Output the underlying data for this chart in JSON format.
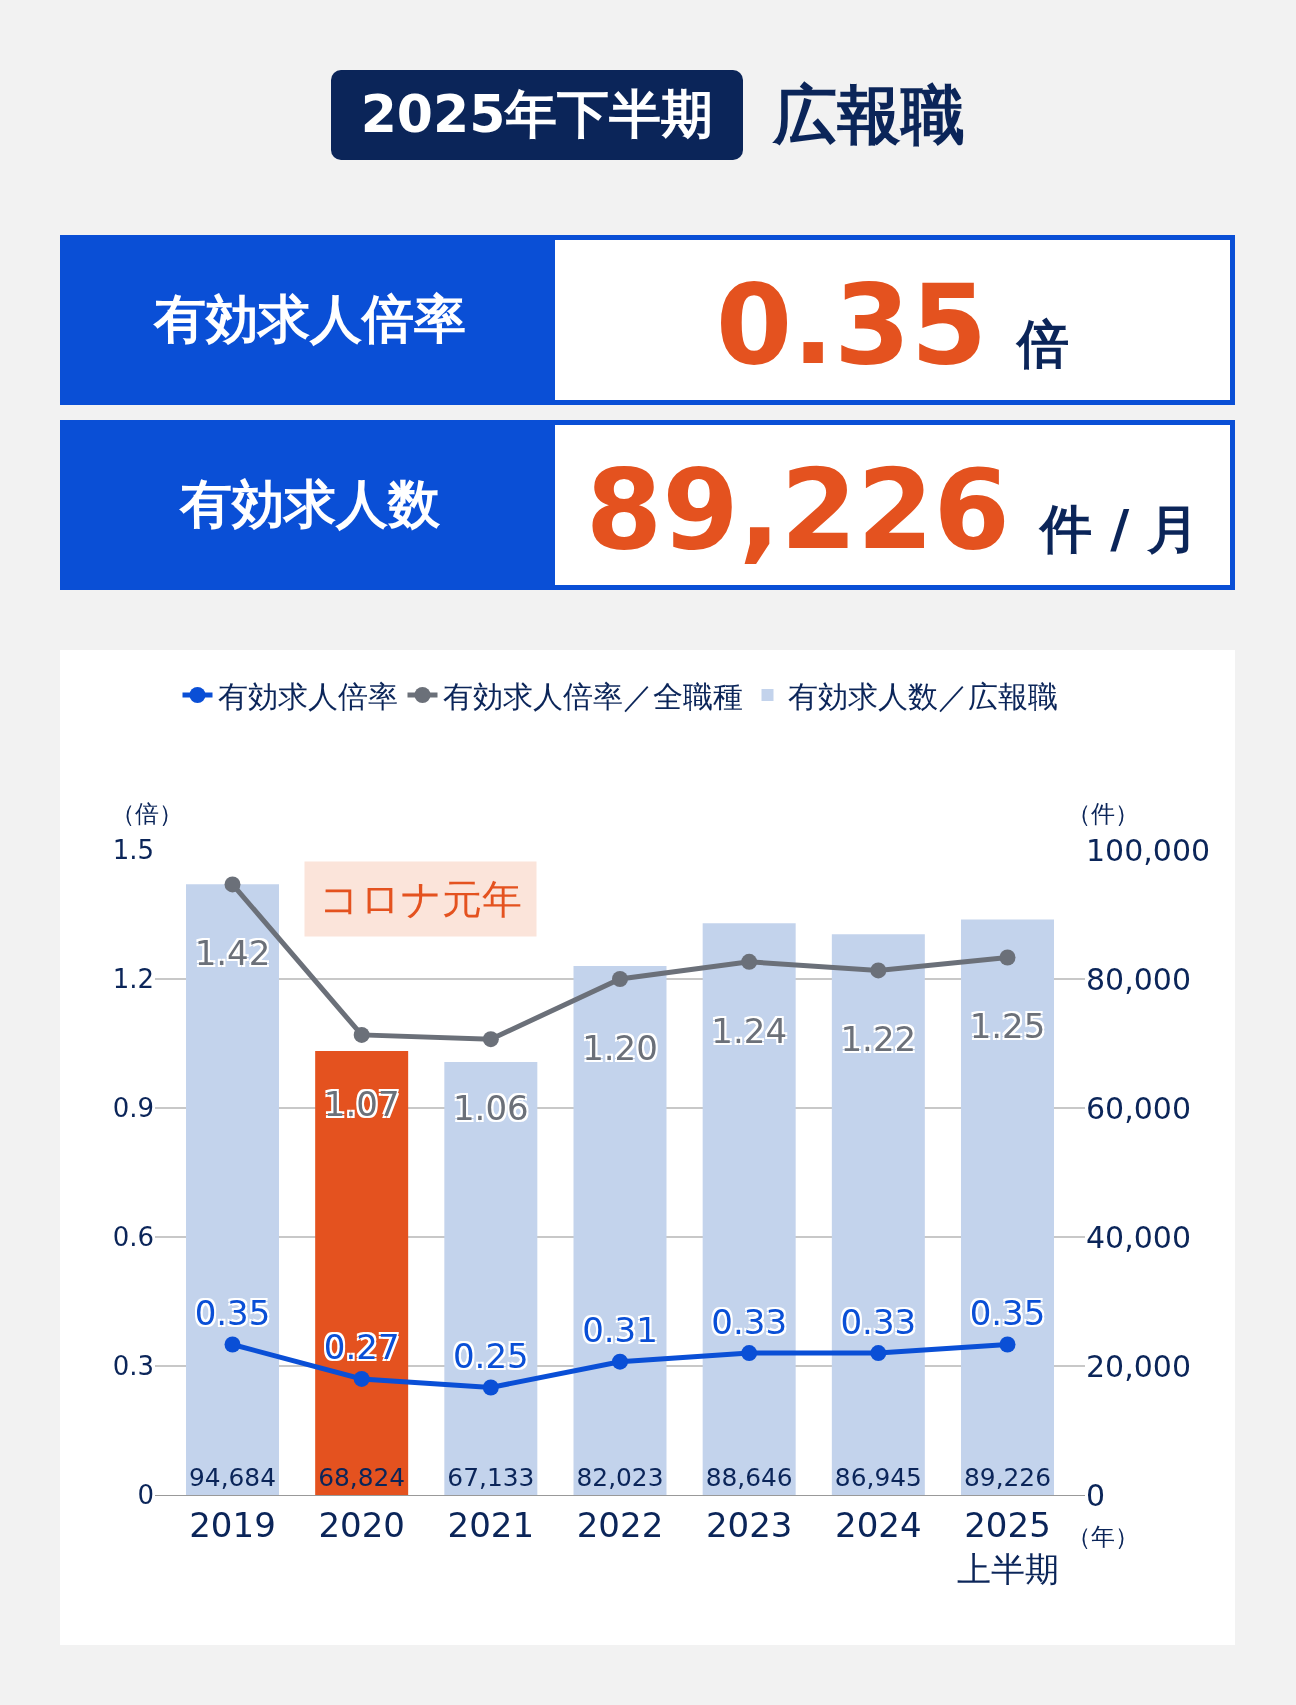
{
  "chart_data": [
    {
      "type": "other",
      "title": "2025年下半期",
      "subtitle": "広報職",
      "annotations": [
        "有効求人倍率",
        "0.35",
        "倍",
        "有効求人数",
        "89,226",
        "件 / 月"
      ]
    },
    {
      "type": "bar",
      "categories": [
        "2019",
        "2020",
        "2021",
        "2022",
        "2023",
        "2024",
        "2025\n上半期"
      ],
      "xlabel": "（年）",
      "ylabel": "（倍）",
      "y2label": "（件）",
      "ylim": [
        0,
        1.5
      ],
      "yticks": [
        0,
        0.3,
        0.6,
        0.9,
        1.2,
        1.5
      ],
      "y2lim": [
        0,
        100000
      ],
      "y2ticks": [
        0,
        {
          "value": 20000,
          "label": "20,000"
        },
        {
          "value": 40000,
          "label": "40,000"
        },
        {
          "value": 60000,
          "label": "60,000"
        },
        {
          "value": 80000,
          "label": "80,000"
        },
        {
          "value": 100000,
          "label": "100,000"
        }
      ],
      "grid": "y",
      "legend": "top",
      "series": [
        {
          "name": "有効求人数／広報職",
          "type": "bar",
          "axis": "y2",
          "color": "#c3d3ec",
          "colors": [
            null,
            "#e4521f",
            null,
            null,
            null,
            null,
            null
          ],
          "values": [
            94684,
            68824,
            67133,
            82023,
            88646,
            86945,
            89226
          ],
          "value_labels": [
            "94,684",
            "68,824",
            "67,133",
            "82,023",
            "88,646",
            "86,945",
            "89,226"
          ]
        },
        {
          "name": "有効求人倍率／全職種",
          "type": "line",
          "axis": "y",
          "color": "#6b7079",
          "marker": "circle",
          "values": [
            1.42,
            1.07,
            1.06,
            1.2,
            1.24,
            1.22,
            1.25
          ],
          "value_labels": [
            "1.42",
            "1.07",
            "1.06",
            "1.20",
            "1.24",
            "1.22",
            "1.25"
          ]
        },
        {
          "name": "有効求人倍率",
          "type": "line",
          "axis": "y",
          "color": "#0a4fd6",
          "marker": "circle",
          "values": [
            0.35,
            0.27,
            0.25,
            0.31,
            0.33,
            0.33,
            0.35
          ],
          "value_labels": [
            "0.35",
            "0.27",
            "0.25",
            "0.31",
            "0.33",
            "0.33",
            "0.35"
          ]
        }
      ],
      "annotations": [
        "コロナ元年"
      ]
    }
  ]
}
